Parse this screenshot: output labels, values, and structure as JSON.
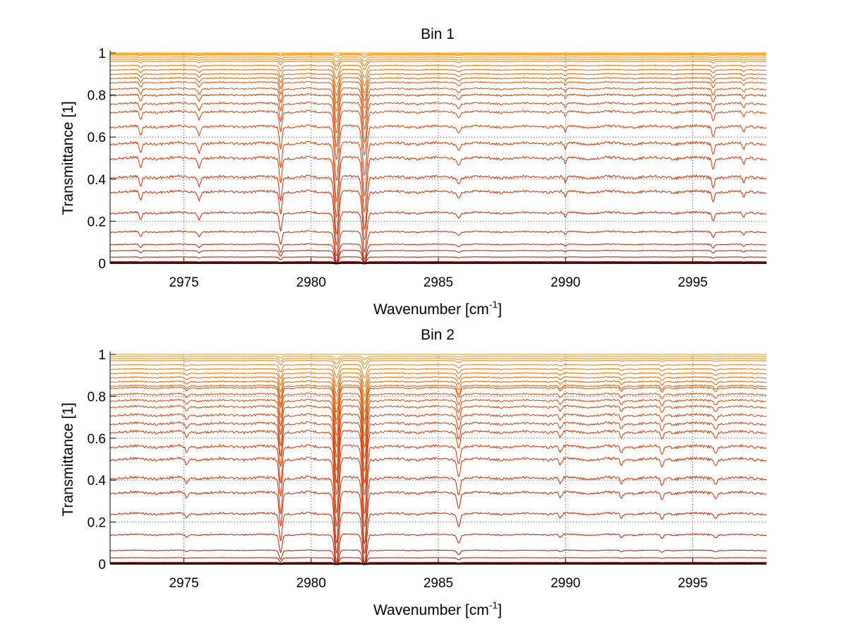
{
  "chart_data": [
    {
      "type": "line",
      "title": "Bin 1",
      "xlabel_base": "Wavenumber [cm",
      "xlabel_sup": "-1",
      "xlabel_end": "]",
      "ylabel": "Transmittance [1]",
      "xlim": [
        2972.1,
        2997.9
      ],
      "ylim": [
        0,
        1
      ],
      "xticks": [
        2975,
        2980,
        2985,
        2990,
        2995
      ],
      "xtick_labels": [
        "2975",
        "2980",
        "2985",
        "2990",
        "2995"
      ],
      "yticks": [
        0,
        0.2,
        0.4,
        0.6,
        0.8,
        1
      ],
      "ytick_labels": [
        "0",
        "0.2",
        "0.4",
        "0.6",
        "0.8",
        "1"
      ],
      "grid": true,
      "series_baselines": [
        0.003,
        0.008,
        0.03,
        0.06,
        0.09,
        0.15,
        0.24,
        0.34,
        0.41,
        0.5,
        0.57,
        0.65,
        0.72,
        0.76,
        0.8,
        0.83,
        0.86,
        0.88,
        0.9,
        0.92,
        0.94,
        0.96,
        0.97,
        0.98,
        0.99,
        0.995,
        1.0
      ],
      "series_colors": [
        "#8b0000",
        "#9a0a00",
        "#a51000",
        "#b01800",
        "#b81e00",
        "#c02400",
        "#c52800",
        "#c82c00",
        "#cc3000",
        "#cf3400",
        "#d23800",
        "#d43c00",
        "#d64000",
        "#d84400",
        "#da4800",
        "#dc4e00",
        "#de5400",
        "#e05a00",
        "#e26000",
        "#e46600",
        "#e66c00",
        "#e87200",
        "#ea7800",
        "#ec7e00",
        "#ee8400",
        "#f08c00",
        "#f29400"
      ],
      "absorption_lines": [
        {
          "center": 2973.3,
          "depth": 0.05,
          "width": 0.07
        },
        {
          "center": 2975.6,
          "depth": 0.04,
          "width": 0.07
        },
        {
          "center": 2978.8,
          "depth": 0.12,
          "width": 0.07
        },
        {
          "center": 2981.0,
          "depth": 0.28,
          "width": 0.11
        },
        {
          "center": 2982.1,
          "depth": 0.26,
          "width": 0.11
        },
        {
          "center": 2985.8,
          "depth": 0.03,
          "width": 0.07
        },
        {
          "center": 2990.0,
          "depth": 0.03,
          "width": 0.07
        },
        {
          "center": 2995.8,
          "depth": 0.05,
          "width": 0.07
        },
        {
          "center": 2997.0,
          "depth": 0.03,
          "width": 0.07
        }
      ]
    },
    {
      "type": "line",
      "title": "Bin 2",
      "xlabel_base": "Wavenumber [cm",
      "xlabel_sup": "-1",
      "xlabel_end": "]",
      "ylabel": "Transmittance [1]",
      "xlim": [
        2972.1,
        2997.9
      ],
      "ylim": [
        0,
        1
      ],
      "xticks": [
        2975,
        2980,
        2985,
        2990,
        2995
      ],
      "xtick_labels": [
        "2975",
        "2980",
        "2985",
        "2990",
        "2995"
      ],
      "yticks": [
        0,
        0.2,
        0.4,
        0.6,
        0.8,
        1
      ],
      "ytick_labels": [
        "0",
        "0.2",
        "0.4",
        "0.6",
        "0.8",
        "1"
      ],
      "grid": true,
      "series_baselines": [
        0.003,
        0.008,
        0.03,
        0.065,
        0.14,
        0.24,
        0.34,
        0.41,
        0.5,
        0.56,
        0.63,
        0.67,
        0.71,
        0.75,
        0.78,
        0.81,
        0.84,
        0.85,
        0.87,
        0.89,
        0.91,
        0.93,
        0.95,
        0.97,
        0.98,
        0.99,
        1.0
      ],
      "series_colors": [
        "#8b0000",
        "#9a0a00",
        "#a51000",
        "#b01800",
        "#b81e00",
        "#c02400",
        "#c52800",
        "#c82c00",
        "#cc3000",
        "#cf3400",
        "#d23800",
        "#d43c00",
        "#d64000",
        "#d84400",
        "#da4800",
        "#dc4e00",
        "#de5400",
        "#e05a00",
        "#e26000",
        "#e46600",
        "#e66c00",
        "#e87200",
        "#ea7800",
        "#ec7e00",
        "#ee8400",
        "#f08c00",
        "#f29400"
      ],
      "absorption_lines": [
        {
          "center": 2975.1,
          "depth": 0.03,
          "width": 0.07
        },
        {
          "center": 2978.8,
          "depth": 0.18,
          "width": 0.08
        },
        {
          "center": 2981.0,
          "depth": 0.32,
          "width": 0.11
        },
        {
          "center": 2982.1,
          "depth": 0.33,
          "width": 0.11
        },
        {
          "center": 2985.8,
          "depth": 0.08,
          "width": 0.08
        },
        {
          "center": 2989.8,
          "depth": 0.03,
          "width": 0.07
        },
        {
          "center": 2992.2,
          "depth": 0.03,
          "width": 0.07
        },
        {
          "center": 2993.8,
          "depth": 0.04,
          "width": 0.07
        },
        {
          "center": 2995.9,
          "depth": 0.03,
          "width": 0.07
        }
      ]
    }
  ]
}
